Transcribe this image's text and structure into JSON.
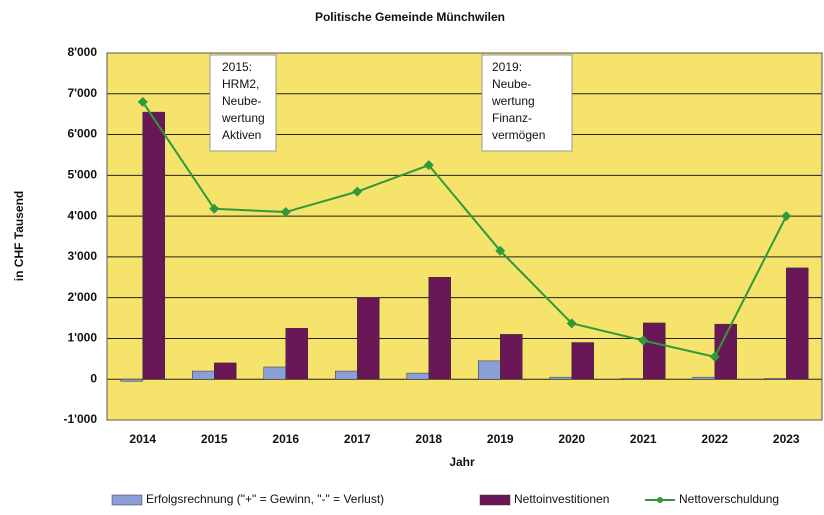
{
  "chart_data": {
    "type": "bar_line",
    "title": "Politische Gemeinde Münchwilen",
    "y_label": "in CHF Tausend",
    "x_label": "Jahr",
    "categories": [
      "2014",
      "2015",
      "2016",
      "2017",
      "2018",
      "2019",
      "2020",
      "2021",
      "2022",
      "2023"
    ],
    "series": [
      {
        "name": "Erfolgsrechnung (\"+\" = Gewinn, \"-\" = Verlust)",
        "type": "bar",
        "color": "#8a9ed8",
        "values": [
          -50,
          200,
          300,
          200,
          150,
          450,
          50,
          20,
          50,
          20
        ]
      },
      {
        "name": "Nettoinvestitionen",
        "type": "bar",
        "color": "#6a1757",
        "values": [
          6550,
          400,
          1250,
          2000,
          2500,
          1100,
          900,
          1380,
          1350,
          2730
        ]
      },
      {
        "name": "Nettoverschuldung",
        "type": "line",
        "color": "#2f9a3a",
        "values": [
          6800,
          4180,
          4100,
          4600,
          5250,
          3150,
          1370,
          950,
          550,
          4000
        ]
      }
    ],
    "ylim": [
      -1000,
      8000
    ],
    "yticks": [
      {
        "value": -1000,
        "label": "-1'000"
      },
      0,
      {
        "value": 1000,
        "label": "1'000"
      },
      {
        "value": 2000,
        "label": "2'000"
      },
      {
        "value": 3000,
        "label": "3'000"
      },
      {
        "value": 4000,
        "label": "4'000"
      },
      {
        "value": 5000,
        "label": "5'000"
      },
      {
        "value": 6000,
        "label": "6'000"
      },
      {
        "value": 7000,
        "label": "7'000"
      },
      {
        "value": 8000,
        "label": "8'000"
      }
    ],
    "negative_tick_color": "#e01010",
    "grid": true,
    "plot_background": "#f6e36c",
    "legend": "bottom",
    "annotations": [
      {
        "lines": [
          "2015:",
          "HRM2,",
          "Neube-",
          "wertung",
          "Aktiven"
        ]
      },
      {
        "lines": [
          "2019:",
          "Neube-",
          "wertung",
          "Finanz-",
          "vermögen"
        ]
      }
    ]
  }
}
